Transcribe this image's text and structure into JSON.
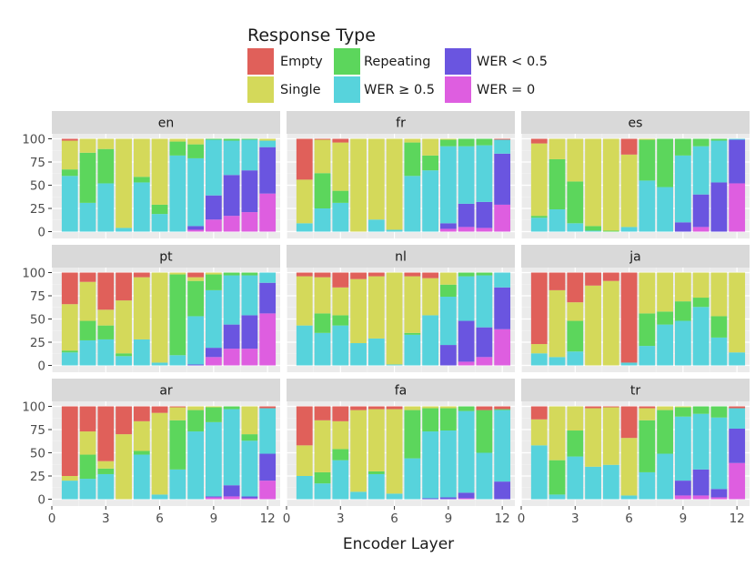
{
  "chart_data": {
    "type": "stacked-bar-facets",
    "xlabel": "Encoder Layer",
    "legend": {
      "title": "Response Type",
      "entries": [
        {
          "key": "empty",
          "label": "Empty",
          "color": "#e0605a"
        },
        {
          "key": "repeating",
          "label": "Repeating",
          "color": "#5cd65c"
        },
        {
          "key": "wer_lt",
          "label": "WER < 0.5",
          "color": "#6a55e0"
        },
        {
          "key": "single",
          "label": "Single",
          "color": "#d4d95a"
        },
        {
          "key": "wer_ge",
          "label": "WER ≥ 0.5",
          "color": "#57d3dc"
        },
        {
          "key": "wer_zero",
          "label": "WER = 0",
          "color": "#de5ee0"
        }
      ]
    },
    "stack_order": [
      "wer_zero",
      "wer_lt",
      "wer_ge",
      "repeating",
      "single",
      "empty"
    ],
    "x_ticks": [
      0,
      3,
      6,
      9,
      12
    ],
    "x_tick_labels": [
      "0",
      "3",
      "6",
      "9",
      "12"
    ],
    "y_ticks": [
      0,
      25,
      50,
      75,
      100
    ],
    "y_tick_labels": [
      "0",
      "25",
      "50",
      "75",
      "100"
    ],
    "xlim": [
      0,
      12.7
    ],
    "ylim": [
      0,
      100
    ],
    "layers": [
      1,
      2,
      3,
      4,
      5,
      6,
      7,
      8,
      9,
      10,
      11,
      12
    ],
    "series_columns": [
      "wer_zero",
      "wer_lt",
      "wer_ge",
      "repeating",
      "single",
      "empty"
    ],
    "facets": [
      {
        "name": "en",
        "bars": [
          [
            0,
            0,
            60,
            7,
            31,
            2
          ],
          [
            0,
            0,
            31,
            54,
            15,
            0
          ],
          [
            0,
            0,
            52,
            37,
            11,
            0
          ],
          [
            0,
            0,
            4,
            0,
            96,
            0
          ],
          [
            0,
            0,
            53,
            6,
            41,
            0
          ],
          [
            0,
            0,
            19,
            10,
            71,
            0
          ],
          [
            0,
            0,
            82,
            15,
            3,
            0
          ],
          [
            2,
            4,
            73,
            15,
            6,
            0
          ],
          [
            13,
            26,
            60,
            1,
            0,
            0
          ],
          [
            17,
            44,
            37,
            2,
            0,
            0
          ],
          [
            21,
            45,
            33,
            1,
            0,
            0
          ],
          [
            41,
            50,
            7,
            0,
            2,
            0
          ]
        ]
      },
      {
        "name": "fr",
        "bars": [
          [
            0,
            0,
            9,
            0,
            47,
            44
          ],
          [
            0,
            0,
            25,
            38,
            36,
            1
          ],
          [
            0,
            0,
            31,
            13,
            52,
            4
          ],
          [
            0,
            0,
            0,
            0,
            100,
            0
          ],
          [
            0,
            0,
            13,
            0,
            87,
            0
          ],
          [
            0,
            0,
            2,
            0,
            98,
            0
          ],
          [
            0,
            0,
            60,
            36,
            4,
            0
          ],
          [
            0,
            0,
            66,
            16,
            18,
            0
          ],
          [
            3,
            6,
            83,
            7,
            1,
            0
          ],
          [
            5,
            25,
            62,
            8,
            0,
            0
          ],
          [
            4,
            28,
            61,
            7,
            0,
            0
          ],
          [
            29,
            55,
            15,
            0,
            0,
            1
          ]
        ]
      },
      {
        "name": "es",
        "bars": [
          [
            0,
            0,
            15,
            2,
            78,
            5
          ],
          [
            0,
            0,
            24,
            54,
            22,
            0
          ],
          [
            0,
            0,
            9,
            45,
            46,
            0
          ],
          [
            0,
            0,
            1,
            5,
            94,
            0
          ],
          [
            0,
            0,
            0,
            1,
            99,
            0
          ],
          [
            0,
            0,
            5,
            0,
            78,
            17
          ],
          [
            0,
            0,
            55,
            44,
            1,
            0
          ],
          [
            0,
            0,
            48,
            52,
            0,
            0
          ],
          [
            0,
            10,
            72,
            18,
            0,
            0
          ],
          [
            5,
            35,
            52,
            8,
            0,
            0
          ],
          [
            0,
            53,
            45,
            2,
            0,
            0
          ],
          [
            52,
            47,
            1,
            0,
            0,
            0
          ]
        ]
      },
      {
        "name": "pt",
        "bars": [
          [
            0,
            0,
            14,
            2,
            50,
            34
          ],
          [
            0,
            0,
            27,
            21,
            42,
            10
          ],
          [
            0,
            0,
            28,
            15,
            17,
            40
          ],
          [
            0,
            0,
            10,
            3,
            57,
            30
          ],
          [
            0,
            0,
            28,
            0,
            67,
            5
          ],
          [
            0,
            0,
            3,
            0,
            97,
            0
          ],
          [
            0,
            0,
            11,
            87,
            2,
            0
          ],
          [
            0,
            1,
            52,
            38,
            4,
            5
          ],
          [
            9,
            10,
            62,
            17,
            2,
            0
          ],
          [
            18,
            26,
            53,
            3,
            0,
            0
          ],
          [
            18,
            36,
            43,
            3,
            0,
            0
          ],
          [
            56,
            33,
            11,
            0,
            0,
            0
          ]
        ]
      },
      {
        "name": "nl",
        "bars": [
          [
            0,
            0,
            43,
            0,
            53,
            4
          ],
          [
            0,
            0,
            35,
            21,
            39,
            5
          ],
          [
            0,
            0,
            43,
            11,
            30,
            16
          ],
          [
            0,
            0,
            24,
            0,
            69,
            7
          ],
          [
            0,
            0,
            29,
            0,
            67,
            4
          ],
          [
            0,
            0,
            1,
            0,
            99,
            0
          ],
          [
            0,
            0,
            33,
            2,
            61,
            4
          ],
          [
            0,
            0,
            54,
            0,
            40,
            6
          ],
          [
            0,
            22,
            52,
            13,
            13,
            0
          ],
          [
            4,
            44,
            48,
            4,
            0,
            0
          ],
          [
            9,
            32,
            56,
            3,
            0,
            0
          ],
          [
            39,
            45,
            16,
            0,
            0,
            0
          ]
        ]
      },
      {
        "name": "ja",
        "bars": [
          [
            0,
            0,
            13,
            0,
            10,
            77
          ],
          [
            0,
            0,
            9,
            0,
            72,
            19
          ],
          [
            0,
            0,
            15,
            33,
            20,
            32
          ],
          [
            0,
            0,
            0,
            0,
            86,
            14
          ],
          [
            0,
            0,
            0,
            0,
            91,
            9
          ],
          [
            0,
            0,
            3,
            0,
            0,
            97
          ],
          [
            0,
            0,
            21,
            35,
            44,
            0
          ],
          [
            0,
            0,
            44,
            14,
            42,
            0
          ],
          [
            0,
            0,
            48,
            21,
            31,
            0
          ],
          [
            0,
            0,
            63,
            10,
            27,
            0
          ],
          [
            0,
            0,
            30,
            23,
            47,
            0
          ],
          [
            0,
            0,
            14,
            0,
            86,
            0
          ]
        ]
      },
      {
        "name": "ar",
        "bars": [
          [
            0,
            0,
            20,
            0,
            5,
            75
          ],
          [
            0,
            0,
            22,
            26,
            25,
            27
          ],
          [
            0,
            0,
            27,
            6,
            8,
            59
          ],
          [
            0,
            0,
            0,
            0,
            70,
            30
          ],
          [
            0,
            0,
            48,
            4,
            32,
            16
          ],
          [
            0,
            0,
            5,
            0,
            88,
            7
          ],
          [
            0,
            0,
            32,
            53,
            14,
            1
          ],
          [
            0,
            0,
            73,
            23,
            4,
            0
          ],
          [
            2,
            1,
            80,
            16,
            1,
            0
          ],
          [
            3,
            12,
            82,
            3,
            0,
            0
          ],
          [
            1,
            2,
            60,
            7,
            30,
            0
          ],
          [
            20,
            29,
            49,
            0,
            0,
            2
          ]
        ]
      },
      {
        "name": "fa",
        "bars": [
          [
            0,
            0,
            25,
            0,
            33,
            42
          ],
          [
            0,
            0,
            17,
            12,
            56,
            15
          ],
          [
            0,
            0,
            42,
            12,
            30,
            16
          ],
          [
            0,
            0,
            8,
            0,
            88,
            4
          ],
          [
            0,
            0,
            27,
            3,
            67,
            3
          ],
          [
            0,
            0,
            6,
            0,
            91,
            3
          ],
          [
            0,
            0,
            44,
            52,
            4,
            0
          ],
          [
            0,
            1,
            72,
            25,
            2,
            0
          ],
          [
            0,
            2,
            72,
            24,
            2,
            0
          ],
          [
            1,
            6,
            88,
            5,
            0,
            0
          ],
          [
            0,
            0,
            50,
            46,
            0,
            4
          ],
          [
            0,
            19,
            77,
            1,
            0,
            3
          ]
        ]
      },
      {
        "name": "tr",
        "bars": [
          [
            0,
            0,
            58,
            0,
            28,
            14
          ],
          [
            0,
            0,
            5,
            37,
            58,
            0
          ],
          [
            0,
            0,
            46,
            28,
            26,
            0
          ],
          [
            0,
            0,
            35,
            0,
            63,
            2
          ],
          [
            0,
            0,
            37,
            0,
            62,
            1
          ],
          [
            0,
            0,
            4,
            0,
            62,
            34
          ],
          [
            0,
            0,
            29,
            56,
            13,
            2
          ],
          [
            0,
            0,
            49,
            47,
            4,
            0
          ],
          [
            4,
            16,
            69,
            10,
            1,
            0
          ],
          [
            4,
            28,
            60,
            8,
            0,
            0
          ],
          [
            2,
            9,
            77,
            12,
            0,
            0
          ],
          [
            39,
            37,
            22,
            0,
            0,
            2
          ]
        ]
      }
    ]
  }
}
